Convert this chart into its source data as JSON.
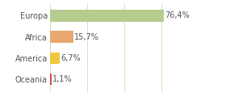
{
  "categories": [
    "Europa",
    "Africa",
    "America",
    "Oceania"
  ],
  "values": [
    76.4,
    15.7,
    6.7,
    1.1
  ],
  "labels": [
    "76,4%",
    "15,7%",
    "6,7%",
    "1,1%"
  ],
  "colors": [
    "#b5cc8e",
    "#e8a870",
    "#f0c840",
    "#e04848"
  ],
  "background_color": "#ffffff",
  "grid_color": "#d8d8b0",
  "xlim": [
    0,
    100
  ],
  "bar_height": 0.55,
  "label_fontsize": 7.0,
  "tick_fontsize": 7.0,
  "grid_xvals": [
    0,
    25,
    50,
    75,
    100
  ]
}
